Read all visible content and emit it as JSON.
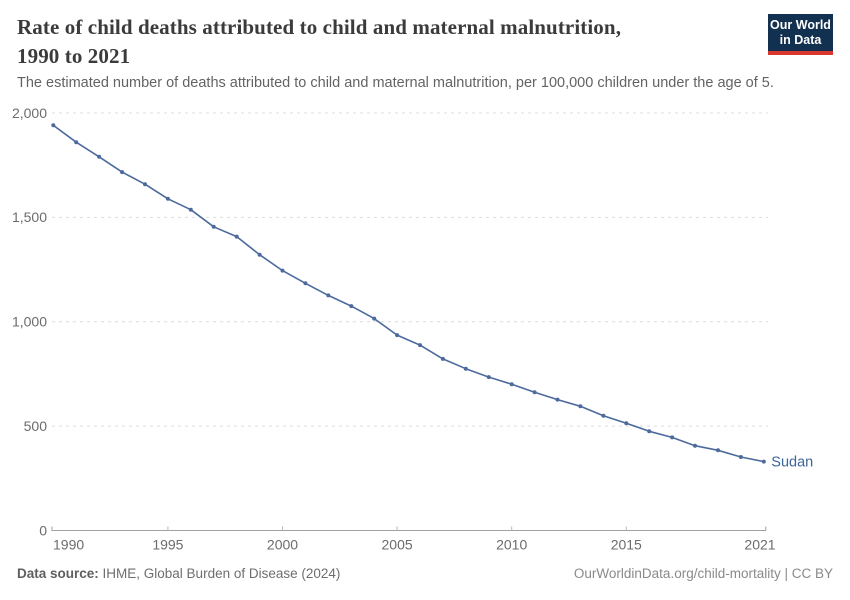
{
  "header": {
    "title_line1": "Rate of child deaths attributed to child and maternal malnutrition,",
    "title_line2": "1990 to 2021",
    "subtitle": "The estimated number of deaths attributed to child and maternal malnutrition, per 100,000 children under the age of 5.",
    "logo": {
      "line1": "Our World",
      "line2": "in Data",
      "bg_color": "#12304f",
      "accent_color": "#d8382d",
      "text_color": "#ffffff"
    }
  },
  "chart_data": {
    "type": "line",
    "title": "Rate of child deaths attributed to child and maternal malnutrition, 1990 to 2021",
    "xlabel": "",
    "ylabel": "",
    "xlim": [
      1990,
      2021
    ],
    "ylim": [
      0,
      2000
    ],
    "grid": "horizontal-dashed",
    "legend_position": "end-of-line-label",
    "x": [
      1990,
      1991,
      1992,
      1993,
      1994,
      1995,
      1996,
      1997,
      1998,
      1999,
      2000,
      2001,
      2002,
      2003,
      2004,
      2005,
      2006,
      2007,
      2008,
      2009,
      2010,
      2011,
      2012,
      2013,
      2014,
      2015,
      2016,
      2017,
      2018,
      2019,
      2020,
      2021
    ],
    "series": [
      {
        "name": "Sudan",
        "color": "#4c6a9c",
        "label_color": "#3d649c",
        "values": [
          1941,
          1860,
          1790,
          1717,
          1659,
          1589,
          1537,
          1455,
          1408,
          1321,
          1245,
          1184,
          1126,
          1075,
          1015,
          936,
          888,
          822,
          775,
          735,
          701,
          662,
          627,
          595,
          550,
          514,
          475,
          446,
          406,
          384,
          352,
          330
        ]
      }
    ],
    "y_ticks": [
      {
        "v": 0,
        "label": "0"
      },
      {
        "v": 500,
        "label": "500"
      },
      {
        "v": 1000,
        "label": "1,000"
      },
      {
        "v": 1500,
        "label": "1,500"
      },
      {
        "v": 2000,
        "label": "2,000"
      }
    ],
    "x_ticks": [
      {
        "v": 1990,
        "label": "1990"
      },
      {
        "v": 1995,
        "label": "1995"
      },
      {
        "v": 2000,
        "label": "2000"
      },
      {
        "v": 2005,
        "label": "2005"
      },
      {
        "v": 2010,
        "label": "2010"
      },
      {
        "v": 2015,
        "label": "2015"
      },
      {
        "v": 2021,
        "label": "2021"
      }
    ],
    "axis_color": "#a1a1a1",
    "grid_color": "#dcdcdc",
    "tick_label_color": "#6c6c6c"
  },
  "footer": {
    "source_label": "Data source:",
    "source_text": " IHME, Global Burden of Disease (2024)",
    "rights": "OurWorldinData.org/child-mortality | CC BY"
  }
}
